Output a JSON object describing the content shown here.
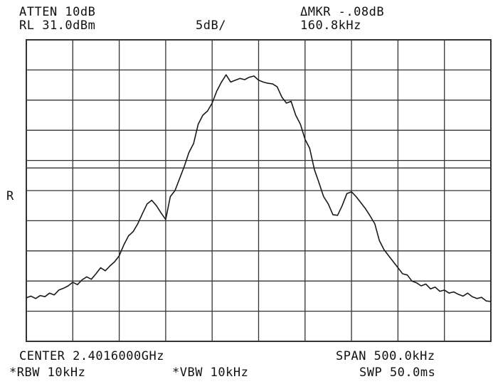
{
  "header": {
    "atten": "ATTEN 10dB",
    "ref_level": "RL 31.0dBm",
    "scale": "5dB/",
    "marker_delta": "ΔMKR -.08dB",
    "marker_freq": "160.8kHz"
  },
  "side_marker": "R",
  "footer": {
    "center": "CENTER 2.4016000GHz",
    "span": "SPAN 500.0kHz",
    "rbw": "*RBW 10kHz",
    "vbw": "*VBW 10kHz",
    "sweep": "SWP 50.0ms"
  },
  "colors": {
    "trace": "#1a1a1a",
    "grid": "#333333",
    "background": "#ffffff"
  },
  "chart_data": {
    "type": "line",
    "title": "",
    "xlabel": "",
    "ylabel": "",
    "x_unit": "kHz offset from center",
    "y_unit": "dBm",
    "xlim": [
      -250,
      250
    ],
    "ylim": [
      -19,
      31
    ],
    "grid": true,
    "h_gridlines_dBm": [
      26,
      21,
      16,
      11,
      9.75,
      6,
      1,
      -4,
      -9,
      -14
    ],
    "v_gridlines_kHz": [
      -250,
      -200,
      -150,
      -100,
      -50,
      0,
      50,
      100,
      150,
      200,
      250
    ],
    "series": [
      {
        "x": [
          -250,
          -245,
          -240,
          -235,
          -230,
          -225,
          -220,
          -215,
          -210,
          -205,
          -200,
          -195,
          -190,
          -185,
          -180,
          -175,
          -170,
          -165,
          -160,
          -155,
          -150,
          -145,
          -140,
          -135,
          -130,
          -125,
          -120,
          -115,
          -110,
          -105,
          -100,
          -95,
          -90,
          -85,
          -80,
          -75,
          -70,
          -65,
          -60,
          -55,
          -50,
          -45,
          -40,
          -35,
          -30,
          -25,
          -20,
          -15,
          -10,
          -5,
          0,
          5,
          10,
          15,
          20,
          25,
          30,
          35,
          40,
          45,
          50,
          55,
          60,
          65,
          70,
          75,
          80,
          85,
          90,
          95,
          100,
          105,
          110,
          115,
          120,
          125,
          130,
          135,
          140,
          145,
          150,
          155,
          160,
          165,
          170,
          175,
          180,
          185,
          190,
          195,
          200,
          205,
          210,
          215,
          220,
          225,
          230,
          235,
          240,
          245,
          250
        ],
        "y": [
          -11.8,
          -11.5,
          -11.9,
          -11.4,
          -11.6,
          -11.0,
          -11.3,
          -10.5,
          -10.2,
          -9.8,
          -9.2,
          -9.6,
          -8.8,
          -8.3,
          -8.7,
          -7.8,
          -6.8,
          -7.3,
          -6.5,
          -5.8,
          -4.8,
          -3.0,
          -1.5,
          -0.8,
          0.5,
          2.2,
          3.8,
          4.4,
          3.5,
          2.3,
          1.2,
          5.0,
          6.0,
          8.0,
          10.0,
          12.3,
          13.8,
          17.0,
          18.5,
          19.2,
          20.5,
          22.5,
          24.0,
          25.2,
          24.0,
          24.3,
          24.6,
          24.4,
          24.8,
          25.0,
          24.3,
          24.0,
          23.8,
          23.7,
          23.2,
          21.5,
          20.5,
          20.8,
          18.5,
          17.0,
          14.5,
          13.0,
          9.5,
          7.3,
          5.0,
          3.8,
          2.0,
          1.9,
          3.5,
          5.5,
          5.8,
          5.0,
          4.0,
          3.0,
          1.8,
          0.5,
          -2.3,
          -3.8,
          -4.8,
          -5.8,
          -6.8,
          -7.8,
          -8.0,
          -9.0,
          -9.3,
          -9.8,
          -9.5,
          -10.3,
          -10.0,
          -10.7,
          -10.5,
          -11.0,
          -10.8,
          -11.2,
          -11.5,
          -11.0,
          -11.6,
          -11.9,
          -11.7,
          -12.3,
          -12.4
        ]
      }
    ]
  }
}
